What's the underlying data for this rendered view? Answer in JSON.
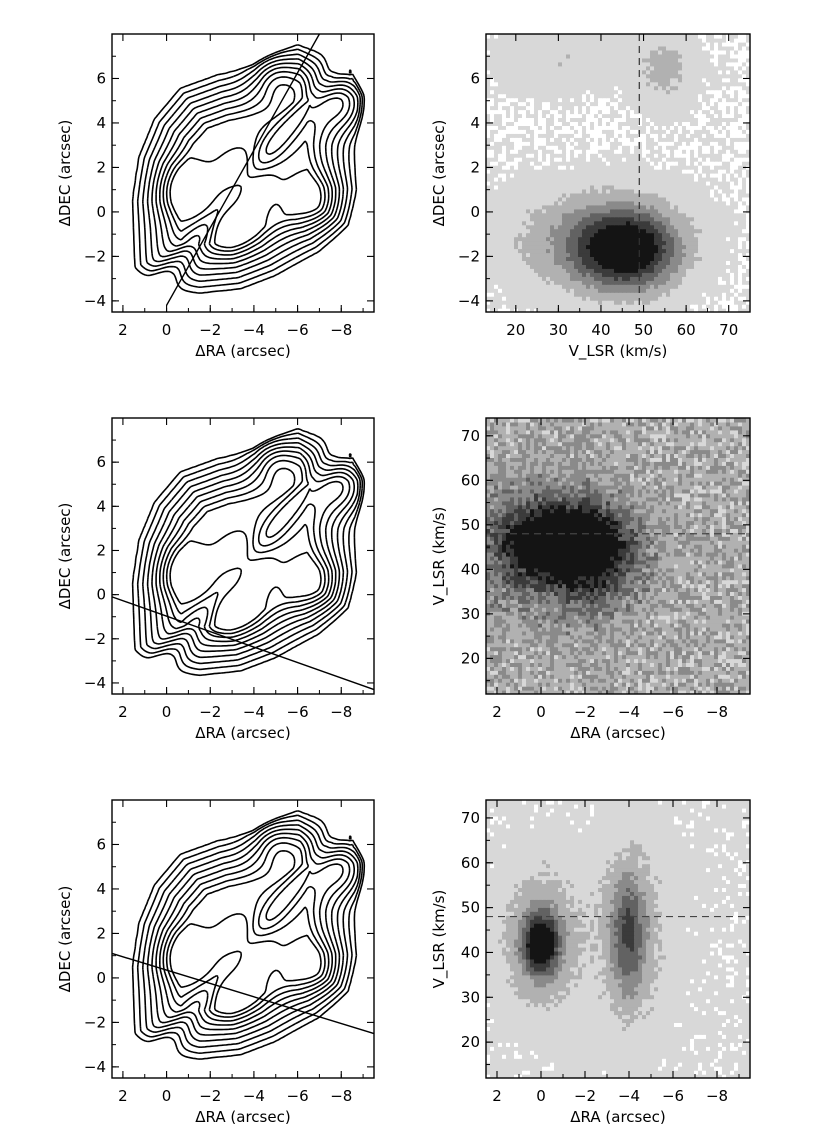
{
  "chart_data": [
    {
      "type": "contour",
      "panel": "top-left",
      "xlabel": "ΔRA (arcsec)",
      "ylabel": "ΔDEC (arcsec)",
      "xlim": [
        2.5,
        -9.5
      ],
      "ylim": [
        -4.5,
        8
      ],
      "xticks": [
        2,
        0,
        -2,
        -4,
        -6,
        -8
      ],
      "xtick_labels": [
        "2",
        "0",
        "−2",
        "−4",
        "−6",
        "−8"
      ],
      "yticks": [
        -4,
        -2,
        0,
        2,
        4,
        6
      ],
      "ytick_labels": [
        "−4",
        "−2",
        "0",
        "2",
        "4",
        "6"
      ],
      "slit": [
        [
          0.0,
          -4.2
        ],
        [
          -7.0,
          8.0
        ]
      ],
      "contour_levels": 10,
      "peaks": [
        [
          -0.8,
          1.0
        ],
        [
          -3.6,
          1.5
        ],
        [
          -3.0,
          -0.6
        ],
        [
          -6.8,
          0.5
        ],
        [
          -5.0,
          6.0
        ],
        [
          -8.3,
          4.8
        ]
      ]
    },
    {
      "type": "heatmap",
      "panel": "top-right",
      "xlabel": "V_LSR (km/s)",
      "ylabel": "ΔDEC (arcsec)",
      "xlim": [
        13,
        75
      ],
      "ylim": [
        -4.5,
        8
      ],
      "xticks": [
        20,
        30,
        40,
        50,
        60,
        70
      ],
      "xtick_labels": [
        "20",
        "30",
        "40",
        "50",
        "60",
        "70"
      ],
      "yticks": [
        -4,
        -2,
        0,
        2,
        4,
        6
      ],
      "ytick_labels": [
        "−4",
        "−2",
        "0",
        "2",
        "4",
        "6"
      ],
      "reference_x": 49,
      "blobs": [
        {
          "x": 46,
          "y": -1.7,
          "sx": 8,
          "sy": 1.2,
          "peak": 0.95
        },
        {
          "x": 38,
          "y": -1.2,
          "sx": 14,
          "sy": 1.5,
          "peak": 0.35
        },
        {
          "x": 55,
          "y": 6.5,
          "sx": 5,
          "sy": 1.2,
          "peak": 0.22
        },
        {
          "x": 30,
          "y": 7.0,
          "sx": 10,
          "sy": 1.0,
          "peak": 0.15
        }
      ]
    },
    {
      "type": "contour",
      "panel": "middle-left",
      "xlabel": "ΔRA (arcsec)",
      "ylabel": "ΔDEC (arcsec)",
      "xlim": [
        2.5,
        -9.5
      ],
      "ylim": [
        -4.5,
        8
      ],
      "xticks": [
        2,
        0,
        -2,
        -4,
        -6,
        -8
      ],
      "xtick_labels": [
        "2",
        "0",
        "−2",
        "−4",
        "−6",
        "−8"
      ],
      "yticks": [
        -4,
        -2,
        0,
        2,
        4,
        6
      ],
      "ytick_labels": [
        "−4",
        "−2",
        "0",
        "2",
        "4",
        "6"
      ],
      "slit": [
        [
          2.5,
          -0.1
        ],
        [
          -9.5,
          -4.3
        ]
      ],
      "contour_levels": 10,
      "peaks": [
        [
          -0.8,
          1.0
        ],
        [
          -3.6,
          1.5
        ],
        [
          -3.0,
          -0.6
        ],
        [
          -6.8,
          0.5
        ],
        [
          -5.0,
          6.0
        ],
        [
          -8.3,
          4.8
        ]
      ]
    },
    {
      "type": "heatmap",
      "panel": "middle-right",
      "xlabel": "ΔRA (arcsec)",
      "ylabel": "V_LSR (km/s)",
      "xlim": [
        2.5,
        -9.5
      ],
      "ylim": [
        12,
        74
      ],
      "xticks": [
        2,
        0,
        -2,
        -4,
        -6,
        -8
      ],
      "xtick_labels": [
        "2",
        "0",
        "−2",
        "−4",
        "−6",
        "−8"
      ],
      "yticks": [
        20,
        30,
        40,
        50,
        60,
        70
      ],
      "ytick_labels": [
        "20",
        "30",
        "40",
        "50",
        "60",
        "70"
      ],
      "reference_y": 48,
      "background": 0.35,
      "blobs": [
        {
          "x": -1.0,
          "y": 46,
          "sx": 1.6,
          "sy": 5,
          "peak": 0.9
        },
        {
          "x": -0.5,
          "y": 45,
          "sx": 2.5,
          "sy": 10,
          "peak": 0.4
        },
        {
          "x": -2.5,
          "y": 40,
          "sx": 1.2,
          "sy": 8,
          "peak": 0.25
        }
      ]
    },
    {
      "type": "contour",
      "panel": "bottom-left",
      "xlabel": "ΔRA (arcsec)",
      "ylabel": "ΔDEC (arcsec)",
      "xlim": [
        2.5,
        -9.5
      ],
      "ylim": [
        -4.5,
        8
      ],
      "xticks": [
        2,
        0,
        -2,
        -4,
        -6,
        -8
      ],
      "xtick_labels": [
        "2",
        "0",
        "−2",
        "−4",
        "−6",
        "−8"
      ],
      "yticks": [
        -4,
        -2,
        0,
        2,
        4,
        6
      ],
      "ytick_labels": [
        "−4",
        "−2",
        "0",
        "2",
        "4",
        "6"
      ],
      "slit": [
        [
          2.5,
          1.1
        ],
        [
          -9.5,
          -2.5
        ]
      ],
      "contour_levels": 10,
      "peaks": [
        [
          -0.8,
          1.0
        ],
        [
          -3.6,
          1.5
        ],
        [
          -3.0,
          -0.6
        ],
        [
          -6.8,
          0.5
        ],
        [
          -5.0,
          6.0
        ],
        [
          -8.3,
          4.8
        ]
      ]
    },
    {
      "type": "heatmap",
      "panel": "bottom-right",
      "xlabel": "ΔRA (arcsec)",
      "ylabel": "V_LSR (km/s)",
      "xlim": [
        2.5,
        -9.5
      ],
      "ylim": [
        12,
        74
      ],
      "xticks": [
        2,
        0,
        -2,
        -4,
        -6,
        -8
      ],
      "xtick_labels": [
        "2",
        "0",
        "−2",
        "−4",
        "−6",
        "−8"
      ],
      "yticks": [
        20,
        30,
        40,
        50,
        60,
        70
      ],
      "ytick_labels": [
        "20",
        "30",
        "40",
        "50",
        "60",
        "70"
      ],
      "reference_y": 48,
      "background": 0.12,
      "blobs": [
        {
          "x": 0.0,
          "y": 42,
          "sx": 0.55,
          "sy": 4.5,
          "peak": 0.85
        },
        {
          "x": 0.0,
          "y": 43,
          "sx": 1.1,
          "sy": 10,
          "peak": 0.35
        },
        {
          "x": -4.0,
          "y": 44,
          "sx": 0.55,
          "sy": 9,
          "peak": 0.5
        },
        {
          "x": -4.0,
          "y": 44,
          "sx": 1.2,
          "sy": 14,
          "peak": 0.2
        }
      ]
    }
  ]
}
